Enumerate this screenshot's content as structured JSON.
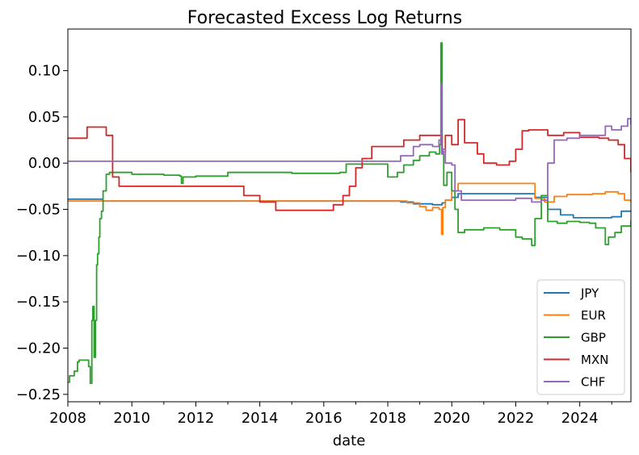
{
  "chart_data": {
    "type": "line",
    "title": "Forecasted Excess Log Returns",
    "xlabel": "date",
    "ylabel": "",
    "xlim": [
      2008.0,
      2025.6
    ],
    "ylim": [
      -0.258,
      0.145
    ],
    "xticks": [
      2008,
      2010,
      2012,
      2014,
      2016,
      2018,
      2020,
      2022,
      2024
    ],
    "xtick_labels": [
      "2008",
      "2010",
      "2012",
      "2014",
      "2016",
      "2018",
      "2020",
      "2022",
      "2024"
    ],
    "yticks": [
      0.1,
      0.05,
      0.0,
      -0.05,
      -0.1,
      -0.15,
      -0.2,
      -0.25
    ],
    "ytick_labels": [
      "0.10",
      "0.05",
      "0.00",
      "−0.05",
      "−0.10",
      "−0.15",
      "−0.20",
      "−0.25"
    ],
    "grid": false,
    "legend_position": "lower-right",
    "series": [
      {
        "name": "JPY",
        "color": "#1f77b4",
        "x": [
          2008.0,
          2008.9,
          2009.1,
          2018.0,
          2018.4,
          2018.8,
          2019.4,
          2019.7,
          2019.8,
          2020.0,
          2020.2,
          2022.3,
          2022.6,
          2023.0,
          2023.4,
          2023.8,
          2024.4,
          2025.0,
          2025.3,
          2025.6
        ],
        "y": [
          -0.039,
          -0.039,
          -0.041,
          -0.041,
          -0.042,
          -0.044,
          -0.045,
          -0.043,
          -0.04,
          -0.037,
          -0.033,
          -0.033,
          -0.037,
          -0.05,
          -0.056,
          -0.059,
          -0.059,
          -0.058,
          -0.052,
          -0.052
        ]
      },
      {
        "name": "EUR",
        "color": "#ff7f0e",
        "x": [
          2008.0,
          2018.2,
          2018.6,
          2019.0,
          2019.2,
          2019.4,
          2019.6,
          2019.68,
          2019.72,
          2019.8,
          2020.0,
          2020.2,
          2022.3,
          2022.6,
          2022.9,
          2023.2,
          2023.6,
          2024.4,
          2024.8,
          2025.2,
          2025.4,
          2025.6
        ],
        "y": [
          -0.041,
          -0.041,
          -0.043,
          -0.047,
          -0.051,
          -0.048,
          -0.05,
          -0.077,
          -0.048,
          -0.04,
          -0.03,
          -0.022,
          -0.022,
          -0.038,
          -0.042,
          -0.036,
          -0.034,
          -0.033,
          -0.031,
          -0.033,
          -0.04,
          -0.042
        ]
      },
      {
        "name": "GBP",
        "color": "#2ca02c",
        "x": [
          2008.0,
          2008.05,
          2008.2,
          2008.3,
          2008.35,
          2008.6,
          2008.65,
          2008.7,
          2008.75,
          2008.78,
          2008.82,
          2008.86,
          2008.9,
          2008.93,
          2008.97,
          2009.0,
          2009.05,
          2009.1,
          2009.2,
          2009.3,
          2009.5,
          2010.0,
          2011.0,
          2011.5,
          2011.55,
          2011.6,
          2012.0,
          2013.0,
          2014.0,
          2015.0,
          2016.0,
          2016.5,
          2016.7,
          2017.0,
          2017.5,
          2017.8,
          2018.0,
          2018.3,
          2018.5,
          2018.8,
          2019.0,
          2019.3,
          2019.5,
          2019.62,
          2019.66,
          2019.7,
          2019.75,
          2019.85,
          2020.0,
          2020.1,
          2020.2,
          2020.4,
          2021.0,
          2021.5,
          2021.8,
          2022.0,
          2022.2,
          2022.5,
          2022.6,
          2022.8,
          2023.0,
          2023.3,
          2023.6,
          2024.0,
          2024.3,
          2024.5,
          2024.8,
          2024.9,
          2025.1,
          2025.3,
          2025.6
        ],
        "y": [
          -0.237,
          -0.23,
          -0.225,
          -0.215,
          -0.213,
          -0.213,
          -0.22,
          -0.238,
          -0.17,
          -0.155,
          -0.21,
          -0.17,
          -0.11,
          -0.098,
          -0.08,
          -0.06,
          -0.052,
          -0.03,
          -0.012,
          -0.01,
          -0.01,
          -0.012,
          -0.013,
          -0.014,
          -0.022,
          -0.015,
          -0.014,
          -0.01,
          -0.01,
          -0.011,
          -0.011,
          -0.01,
          -0.001,
          -0.001,
          -0.001,
          -0.001,
          -0.015,
          -0.01,
          -0.002,
          0.003,
          0.008,
          0.012,
          0.01,
          0.02,
          0.13,
          0.01,
          -0.024,
          -0.01,
          -0.03,
          -0.05,
          -0.075,
          -0.072,
          -0.07,
          -0.072,
          -0.072,
          -0.08,
          -0.082,
          -0.089,
          -0.06,
          -0.035,
          -0.063,
          -0.065,
          -0.063,
          -0.064,
          -0.065,
          -0.07,
          -0.088,
          -0.08,
          -0.075,
          -0.068,
          -0.062
        ]
      },
      {
        "name": "MXN",
        "color": "#d62728",
        "x": [
          2008.0,
          2008.4,
          2008.6,
          2009.0,
          2009.2,
          2009.4,
          2009.6,
          2010.0,
          2011.0,
          2012.0,
          2013.0,
          2013.5,
          2014.0,
          2014.5,
          2015.0,
          2016.0,
          2016.3,
          2016.6,
          2016.8,
          2017.0,
          2017.2,
          2017.5,
          2018.0,
          2018.5,
          2019.0,
          2019.5,
          2019.7,
          2019.8,
          2020.0,
          2020.2,
          2020.4,
          2020.8,
          2021.0,
          2021.4,
          2021.8,
          2022.0,
          2022.2,
          2022.4,
          2023.0,
          2023.5,
          2024.0,
          2024.6,
          2024.9,
          2025.2,
          2025.4,
          2025.6
        ],
        "y": [
          0.027,
          0.027,
          0.039,
          0.039,
          0.03,
          -0.015,
          -0.025,
          -0.025,
          -0.025,
          -0.025,
          -0.025,
          -0.035,
          -0.042,
          -0.051,
          -0.051,
          -0.051,
          -0.045,
          -0.035,
          -0.025,
          -0.005,
          0.005,
          0.018,
          0.018,
          0.025,
          0.03,
          0.03,
          0.012,
          0.03,
          0.02,
          0.047,
          0.022,
          0.01,
          0.0,
          -0.002,
          0.002,
          0.015,
          0.035,
          0.036,
          0.03,
          0.033,
          0.028,
          0.027,
          0.025,
          0.02,
          0.005,
          -0.01
        ]
      },
      {
        "name": "CHF",
        "color": "#9467bd",
        "x": [
          2008.0,
          2018.0,
          2018.4,
          2018.8,
          2019.0,
          2019.4,
          2019.6,
          2019.66,
          2019.68,
          2019.72,
          2019.8,
          2020.0,
          2020.1,
          2020.3,
          2021.0,
          2022.0,
          2022.5,
          2022.8,
          2023.0,
          2023.2,
          2023.6,
          2024.0,
          2024.4,
          2024.8,
          2025.0,
          2025.3,
          2025.5,
          2025.6
        ],
        "y": [
          0.002,
          0.002,
          0.008,
          0.018,
          0.02,
          0.018,
          0.025,
          0.086,
          0.01,
          0.015,
          0.0,
          -0.002,
          -0.03,
          -0.04,
          -0.04,
          -0.038,
          -0.042,
          -0.04,
          0.0,
          0.025,
          0.027,
          0.03,
          0.03,
          0.04,
          0.036,
          0.04,
          0.048,
          0.042
        ]
      }
    ]
  }
}
